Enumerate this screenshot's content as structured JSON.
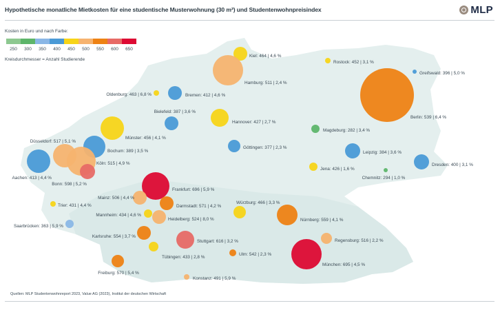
{
  "header": {
    "title": "Hypothetische monatliche Mietkosten für eine studentische Musterwohnung (30 m²) und Studentenwohnpreisindex",
    "logo_text": "MLP"
  },
  "legend": {
    "title": "Kosten in Euro und nach Farbe:",
    "scale": [
      {
        "label": "250",
        "color": "#8dc890"
      },
      {
        "label": "300",
        "color": "#5db56a"
      },
      {
        "label": "350",
        "color": "#8ab7e6"
      },
      {
        "label": "400",
        "color": "#4a9ad6"
      },
      {
        "label": "450",
        "color": "#f7d418"
      },
      {
        "label": "500",
        "color": "#f6b36f"
      },
      {
        "label": "550",
        "color": "#ee8214"
      },
      {
        "label": "600",
        "color": "#e76a66"
      },
      {
        "label": "650",
        "color": "#dd0a33"
      }
    ],
    "note": "Kreisdurchmesser = Anzahl Studierende"
  },
  "source": "Quellen: MLP Studentenwohnreport 2023, Value AG (2023), Institut der deutschen Wirtschaft",
  "chart_data": {
    "type": "scatter",
    "title": "Hypothetische monatliche Mietkosten für eine studentische Musterwohnung (30 m²) und Studentenwohnpreisindex",
    "value_unit": "Euro",
    "index_unit": "%",
    "size_encoding": "Anzahl Studierende",
    "color_encoding": "Kosten in Euro",
    "cities": [
      {
        "name": "Kiel",
        "rent": 464,
        "index": "4,6 %",
        "label": "Kiel: 464 | 4,6 %",
        "size": "small"
      },
      {
        "name": "Rostock",
        "rent": 452,
        "index": "3,1 %",
        "label": "Rostock: 452 | 3,1 %",
        "size": "tiny"
      },
      {
        "name": "Hamburg",
        "rent": 511,
        "index": "2,4 %",
        "label": "Hamburg: 511 | 2,4 %",
        "size": "large"
      },
      {
        "name": "Greifswald",
        "rent": 396,
        "index": "5,0 %",
        "label": "Greifswald: 396 | 5,0 %",
        "size": "tiny"
      },
      {
        "name": "Oldenburg",
        "rent": 463,
        "index": "6,8 %",
        "label": "Oldenburg: 463 | 6,8 %",
        "size": "tiny"
      },
      {
        "name": "Bremen",
        "rent": 412,
        "index": "4,6 %",
        "label": "Bremen: 412 | 4,6 %",
        "size": "small"
      },
      {
        "name": "Berlin",
        "rent": 539,
        "index": "6,4 %",
        "label": "Berlin: 539 | 6,4 %",
        "size": "xlarge"
      },
      {
        "name": "Bielefeld",
        "rent": 387,
        "index": "3,6 %",
        "label": "Bielefeld: 387 | 3,6 %",
        "size": "small"
      },
      {
        "name": "Hannover",
        "rent": 427,
        "index": "2,7 %",
        "label": "Hannover: 427 | 2,7 %",
        "size": "medium"
      },
      {
        "name": "Magdeburg",
        "rent": 282,
        "index": "3,4 %",
        "label": "Magdeburg: 282 | 3,4 %",
        "size": "tiny"
      },
      {
        "name": "Münster",
        "rent": 456,
        "index": "4,1 %",
        "label": "Münster: 456 | 4,1 %",
        "size": "medium"
      },
      {
        "name": "Düsseldorf",
        "rent": 517,
        "index": "5,1 %",
        "label": "Düsseldorf: 517 | 5,1 %",
        "size": "medium"
      },
      {
        "name": "Bochum",
        "rent": 389,
        "index": "3,5 %",
        "label": "Bochum: 389 | 3,5 %",
        "size": "medium"
      },
      {
        "name": "Göttingen",
        "rent": 377,
        "index": "2,3 %",
        "label": "Göttingen: 377 | 2,3 %",
        "size": "small"
      },
      {
        "name": "Leipzig",
        "rent": 384,
        "index": "3,6 %",
        "label": "Leipzig: 384 | 3,6 %",
        "size": "small"
      },
      {
        "name": "Köln",
        "rent": 515,
        "index": "4,9 %",
        "label": "Köln: 515 | 4,9 %",
        "size": "large"
      },
      {
        "name": "Aachen",
        "rent": 413,
        "index": "4,4 %",
        "label": "Aachen: 413 | 4,4 %",
        "size": "medium"
      },
      {
        "name": "Jena",
        "rent": 426,
        "index": "1,6 %",
        "label": "Jena: 426 | 1,6 %",
        "size": "tiny"
      },
      {
        "name": "Dresden",
        "rent": 400,
        "index": "3,1 %",
        "label": "Dresden: 400 | 3,1 %",
        "size": "small"
      },
      {
        "name": "Bonn",
        "rent": 598,
        "index": "5,2 %",
        "label": "Bonn: 598 | 5,2 %",
        "size": "small"
      },
      {
        "name": "Chemnitz",
        "rent": 294,
        "index": "1,0 %",
        "label": "Chemnitz: 294 | 1,0 %",
        "size": "tiny"
      },
      {
        "name": "Frankfurt",
        "rent": 696,
        "index": "5,9 %",
        "label": "Frankfurt: 696 | 5,9 %",
        "size": "medium"
      },
      {
        "name": "Mainz",
        "rent": 506,
        "index": "4,4 %",
        "label": "Mainz: 506 | 4,4 %",
        "size": "small"
      },
      {
        "name": "Trier",
        "rent": 431,
        "index": "4,4 %",
        "label": "Trier: 431 | 4,4 %",
        "size": "tiny"
      },
      {
        "name": "Darmstadt",
        "rent": 571,
        "index": "4,2 %",
        "label": "Darmstadt: 571 | 4,2 %",
        "size": "small"
      },
      {
        "name": "Würzburg",
        "rent": 466,
        "index": "3,3 %",
        "label": "Würzburg: 466 | 3,3 %",
        "size": "small"
      },
      {
        "name": "Mannheim",
        "rent": 434,
        "index": "4,6 %",
        "label": "Mannheim: 434 | 4,6 %",
        "size": "tiny"
      },
      {
        "name": "Heidelberg",
        "rent": 524,
        "index": "8,0 %",
        "label": "Heidelberg: 524 | 8,0 %",
        "size": "small"
      },
      {
        "name": "Nürnberg",
        "rent": 559,
        "index": "4,1 %",
        "label": "Nürnberg: 559 | 4,1 %",
        "size": "medium"
      },
      {
        "name": "Saarbrücken",
        "rent": 363,
        "index": "5,9 %",
        "label": "Saarbrücken: 363 | 5,9 %",
        "size": "tiny"
      },
      {
        "name": "Karlsruhe",
        "rent": 554,
        "index": "3,7 %",
        "label": "Karlsruhe: 554 | 3,7 %",
        "size": "small"
      },
      {
        "name": "Stuttgart",
        "rent": 616,
        "index": "3,2 %",
        "label": "Stuttgart: 616 | 3,2 %",
        "size": "medium"
      },
      {
        "name": "Regensburg",
        "rent": 516,
        "index": "2,2 %",
        "label": "Regensburg: 516 | 2,2 %",
        "size": "small"
      },
      {
        "name": "Tübingen",
        "rent": 433,
        "index": "2,8 %",
        "label": "Tübingen: 433 | 2,8 %",
        "size": "small"
      },
      {
        "name": "Ulm",
        "rent": 542,
        "index": "2,3 %",
        "label": "Ulm: 542 | 2,3 %",
        "size": "tiny"
      },
      {
        "name": "München",
        "rent": 695,
        "index": "4,5 %",
        "label": "München: 695 | 4,5 %",
        "size": "large"
      },
      {
        "name": "Freiburg",
        "rent": 570,
        "index": "5,4 %",
        "label": "Freiburg: 570 | 5,4 %",
        "size": "small"
      },
      {
        "name": "Konstanz",
        "rent": 491,
        "index": "5,9 %",
        "label": "Konstanz: 491 | 5,9 %",
        "size": "tiny"
      }
    ]
  }
}
